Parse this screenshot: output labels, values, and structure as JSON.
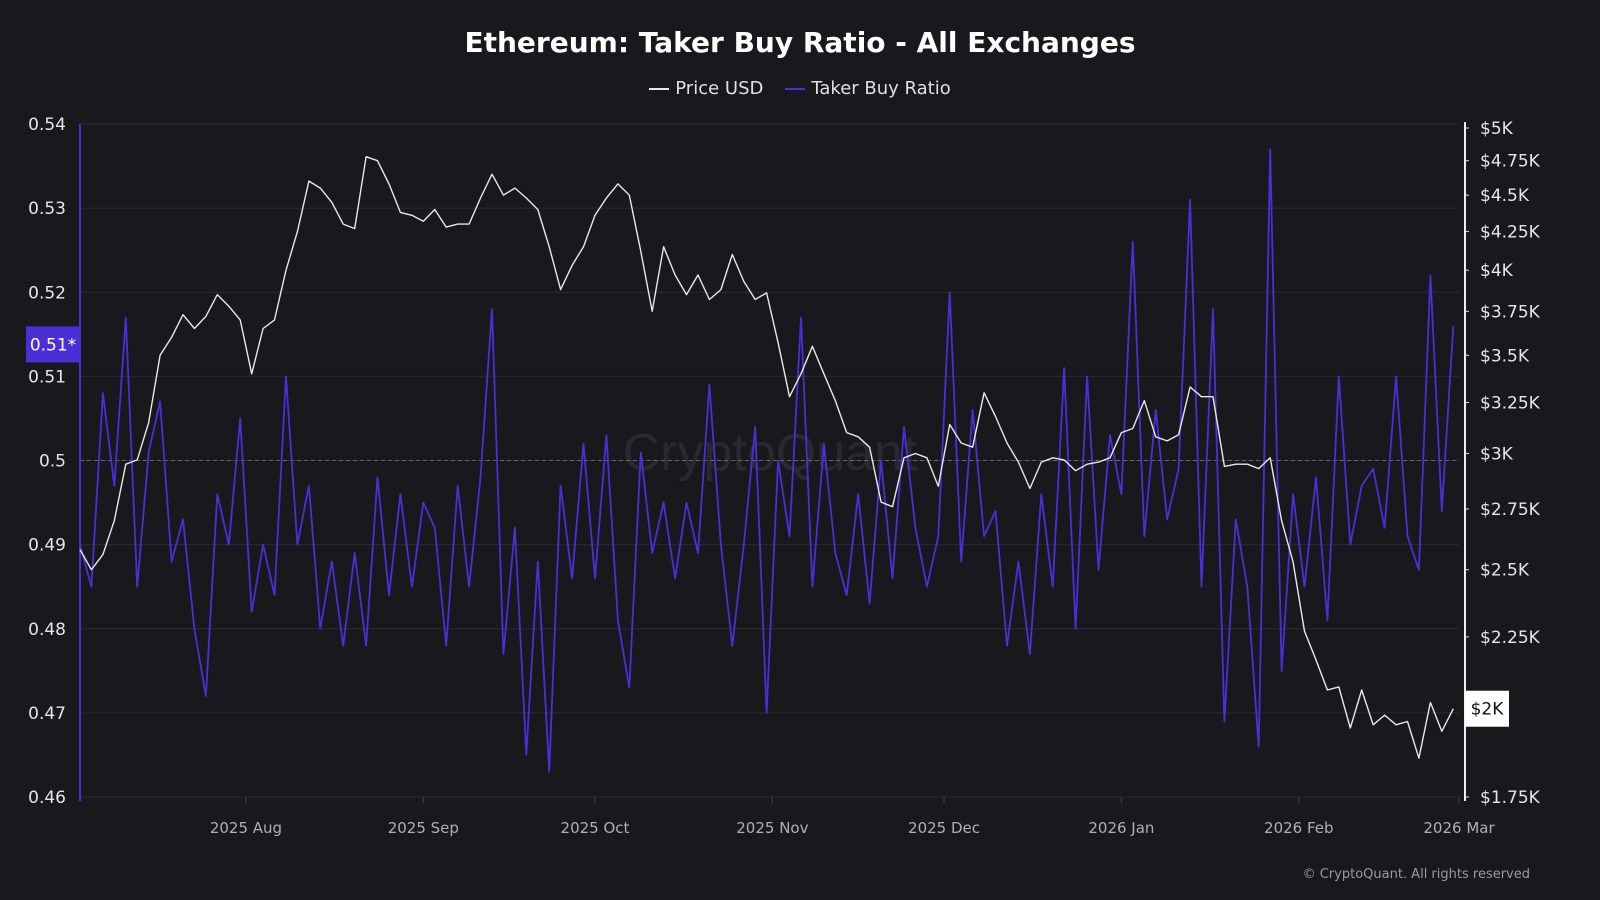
{
  "chart_data": {
    "type": "line",
    "title": "Ethereum: Taker Buy Ratio - All Exchanges",
    "legend": [
      {
        "name": "Price USD",
        "color": "#e8e8e8"
      },
      {
        "name": "Taker Buy Ratio",
        "color": "#4b2fd6"
      }
    ],
    "legend_placement": "top-center",
    "x_start": "2025-07-03",
    "step_days": 2,
    "x_ticks": [
      "2025 Aug",
      "2025 Sep",
      "2025 Oct",
      "2025 Nov",
      "2025 Dec",
      "2026 Jan",
      "2026 Feb",
      "2026 Mar"
    ],
    "y_left": {
      "label": "Taker Buy Ratio",
      "ylim": [
        0.46,
        0.54
      ],
      "ticks": [
        "0.54",
        "0.53",
        "0.52",
        "0.51",
        "0.5",
        "0.49",
        "0.48",
        "0.47",
        "0.46"
      ],
      "reference_line": 0.5
    },
    "y_right": {
      "label": "Price USD",
      "scale": "log",
      "ylim": [
        1750,
        5000
      ],
      "ticks": [
        {
          "v": 5000,
          "t": "$5K"
        },
        {
          "v": 4750,
          "t": "$4.75K"
        },
        {
          "v": 4500,
          "t": "$4.5K"
        },
        {
          "v": 4250,
          "t": "$4.25K"
        },
        {
          "v": 4000,
          "t": "$4K"
        },
        {
          "v": 3750,
          "t": "$3.75K"
        },
        {
          "v": 3500,
          "t": "$3.5K"
        },
        {
          "v": 3250,
          "t": "$3.25K"
        },
        {
          "v": 3000,
          "t": "$3K"
        },
        {
          "v": 2750,
          "t": "$2.75K"
        },
        {
          "v": 2500,
          "t": "$2.5K"
        },
        {
          "v": 2250,
          "t": "$2.25K"
        },
        {
          "v": 1750,
          "t": "$1.75K"
        }
      ]
    },
    "current_labels": {
      "ratio": "0.51*",
      "price": "$2K"
    },
    "grid": true,
    "series": [
      {
        "name": "Price USD",
        "axis": "right",
        "values": [
          2580,
          2500,
          2560,
          2700,
          2950,
          2970,
          3150,
          3500,
          3600,
          3730,
          3650,
          3720,
          3850,
          3780,
          3700,
          3400,
          3650,
          3700,
          4000,
          4250,
          4600,
          4550,
          4450,
          4300,
          4270,
          4780,
          4750,
          4580,
          4380,
          4360,
          4320,
          4400,
          4280,
          4300,
          4300,
          4480,
          4650,
          4500,
          4550,
          4480,
          4400,
          4150,
          3880,
          4030,
          4150,
          4360,
          4480,
          4580,
          4500,
          4120,
          3750,
          4150,
          3970,
          3850,
          3970,
          3820,
          3880,
          4100,
          3930,
          3820,
          3860,
          3570,
          3280,
          3400,
          3550,
          3400,
          3260,
          3100,
          3080,
          3030,
          2780,
          2760,
          2980,
          3000,
          2980,
          2850,
          3140,
          3050,
          3030,
          3300,
          3180,
          3050,
          2960,
          2840,
          2960,
          2980,
          2970,
          2920,
          2950,
          2960,
          2980,
          3100,
          3120,
          3260,
          3080,
          3060,
          3090,
          3330,
          3280,
          3280,
          2940,
          2950,
          2950,
          2930,
          2980,
          2700,
          2530,
          2270,
          2170,
          2070,
          2080,
          1950,
          2070,
          1960,
          1990,
          1960,
          1970,
          1860,
          2030,
          1940,
          2010
        ]
      },
      {
        "name": "Taker Buy Ratio",
        "axis": "left",
        "values": [
          0.49,
          0.485,
          0.508,
          0.497,
          0.517,
          0.485,
          0.501,
          0.507,
          0.488,
          0.493,
          0.48,
          0.472,
          0.496,
          0.49,
          0.505,
          0.482,
          0.49,
          0.484,
          0.51,
          0.49,
          0.497,
          0.48,
          0.488,
          0.478,
          0.489,
          0.478,
          0.498,
          0.484,
          0.496,
          0.485,
          0.495,
          0.492,
          0.478,
          0.497,
          0.485,
          0.498,
          0.518,
          0.477,
          0.492,
          0.465,
          0.488,
          0.463,
          0.497,
          0.486,
          0.502,
          0.486,
          0.503,
          0.481,
          0.473,
          0.501,
          0.489,
          0.495,
          0.486,
          0.495,
          0.489,
          0.509,
          0.49,
          0.478,
          0.49,
          0.504,
          0.47,
          0.5,
          0.491,
          0.517,
          0.485,
          0.502,
          0.489,
          0.484,
          0.496,
          0.483,
          0.5,
          0.486,
          0.504,
          0.492,
          0.485,
          0.491,
          0.52,
          0.488,
          0.506,
          0.491,
          0.494,
          0.478,
          0.488,
          0.477,
          0.496,
          0.485,
          0.511,
          0.48,
          0.51,
          0.487,
          0.503,
          0.496,
          0.526,
          0.491,
          0.506,
          0.493,
          0.499,
          0.531,
          0.485,
          0.518,
          0.469,
          0.493,
          0.485,
          0.466,
          0.537,
          0.475,
          0.496,
          0.485,
          0.498,
          0.481,
          0.51,
          0.49,
          0.497,
          0.499,
          0.492,
          0.51,
          0.491,
          0.487,
          0.522,
          0.494,
          0.516
        ]
      }
    ]
  },
  "watermark": "CryptoQuant",
  "copyright": "© CryptoQuant. All rights reserved"
}
